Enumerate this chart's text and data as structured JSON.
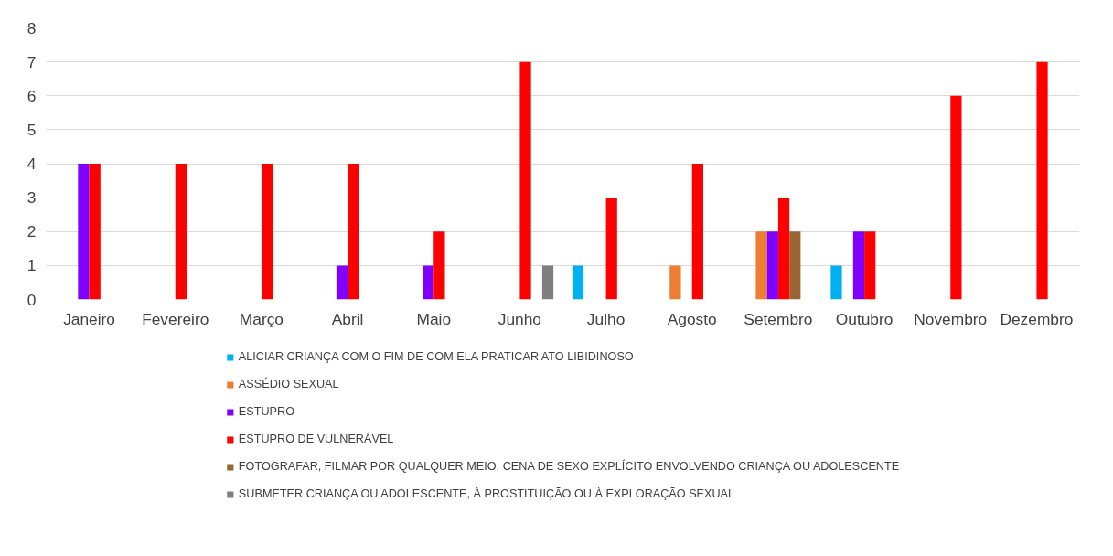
{
  "chart_data": {
    "type": "bar",
    "categories": [
      "Janeiro",
      "Fevereiro",
      "Março",
      "Abril",
      "Maio",
      "Junho",
      "Julho",
      "Agosto",
      "Setembro",
      "Outubro",
      "Novembro",
      "Dezembro"
    ],
    "series": [
      {
        "name": "ALICIAR CRIANÇA COM O FIM DE COM ELA PRATICAR ATO LIBIDINOSO",
        "color": "#00b0f0",
        "values": [
          0,
          0,
          0,
          0,
          0,
          0,
          1,
          0,
          0,
          1,
          0,
          0
        ]
      },
      {
        "name": "ASSÉDIO SEXUAL",
        "color": "#ed7d31",
        "values": [
          0,
          0,
          0,
          0,
          0,
          0,
          0,
          1,
          2,
          0,
          0,
          0
        ]
      },
      {
        "name": "ESTUPRO",
        "color": "#7f00ff",
        "values": [
          4,
          0,
          0,
          1,
          1,
          0,
          0,
          0,
          2,
          2,
          0,
          0
        ]
      },
      {
        "name": "ESTUPRO DE VULNERÁVEL",
        "color": "#ff0000",
        "values": [
          4,
          4,
          4,
          4,
          2,
          7,
          3,
          4,
          3,
          2,
          6,
          7
        ]
      },
      {
        "name": "FOTOGRAFAR, FILMAR POR QUALQUER MEIO, CENA DE SEXO EXPLÍCITO ENVOLVENDO CRIANÇA OU ADOLESCENTE",
        "color": "#996633",
        "values": [
          0,
          0,
          0,
          0,
          0,
          0,
          0,
          0,
          2,
          0,
          0,
          0
        ]
      },
      {
        "name": "SUBMETER CRIANÇA OU ADOLESCENTE, À PROSTITUIÇÃO OU À EXPLORAÇÃO SEXUAL",
        "color": "#7f7f7f",
        "values": [
          0,
          0,
          0,
          0,
          0,
          1,
          0,
          0,
          0,
          0,
          0,
          0
        ]
      }
    ],
    "ylim": [
      0,
      8
    ],
    "yticks": [
      0,
      1,
      2,
      3,
      4,
      5,
      6,
      7,
      8
    ],
    "grid": "y",
    "legend": "bottom"
  }
}
